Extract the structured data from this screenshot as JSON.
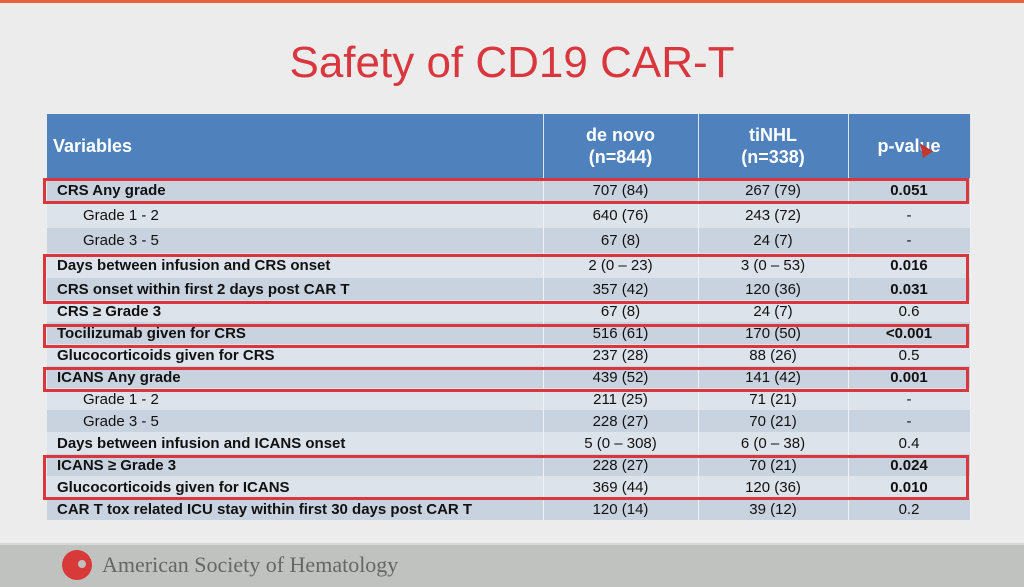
{
  "title": "Safety of CD19 CAR-T",
  "table": {
    "headers": [
      "Variables",
      "de novo",
      "(n=844)",
      "tiNHL",
      "(n=338)",
      "p-value"
    ],
    "rows": [
      [
        "CRS Any grade",
        "707 (84)",
        "267 (79)",
        "0.051"
      ],
      [
        "Grade 1 - 2",
        "640 (76)",
        "243 (72)",
        "-"
      ],
      [
        "Grade 3 - 5",
        "67 (8)",
        "24 (7)",
        "-"
      ],
      [
        "Days between infusion and CRS onset",
        "2 (0 – 23)",
        "3 (0 – 53)",
        "0.016"
      ],
      [
        "CRS onset within first 2 days post CAR T",
        "357 (42)",
        "120 (36)",
        "0.031"
      ],
      [
        "CRS ≥ Grade 3",
        "67 (8)",
        "24 (7)",
        "0.6"
      ],
      [
        "Tocilizumab given for CRS",
        "516 (61)",
        "170 (50)",
        "<0.001"
      ],
      [
        "Glucocorticoids given for CRS",
        "237 (28)",
        "88 (26)",
        "0.5"
      ],
      [
        "ICANS Any grade",
        "439 (52)",
        "141 (42)",
        "0.001"
      ],
      [
        "Grade 1 - 2",
        "211 (25)",
        "71 (21)",
        "-"
      ],
      [
        "Grade 3 - 5",
        "228 (27)",
        "70 (21)",
        "-"
      ],
      [
        "Days between infusion and ICANS onset",
        "5 (0 – 308)",
        "6 (0 – 38)",
        "0.4"
      ],
      [
        "ICANS ≥ Grade 3",
        "228 (27)",
        "70 (21)",
        "0.024"
      ],
      [
        "Glucocorticoids given for ICANS",
        "369 (44)",
        "120 (36)",
        "0.010"
      ],
      [
        "CAR T tox related ICU stay within first 30 days post CAR T",
        "120 (14)",
        "39 (12)",
        "0.2"
      ]
    ]
  },
  "highlight_color": "#d9363e",
  "header_color": "#4f81bd",
  "footer": {
    "logo_text": "American Society of Hematology"
  }
}
